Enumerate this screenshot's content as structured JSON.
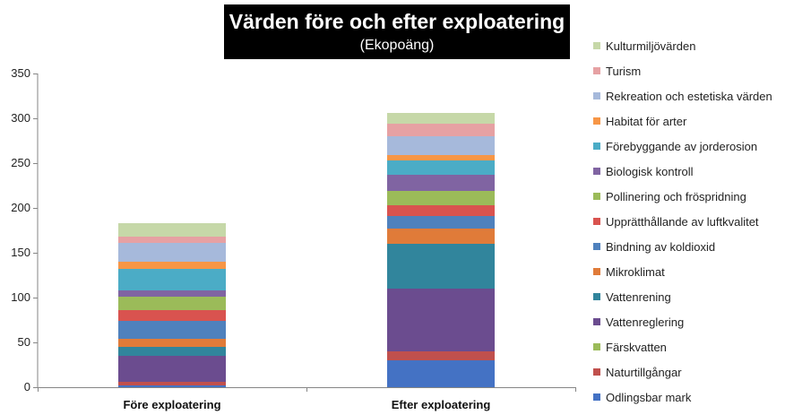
{
  "chart_data": {
    "type": "bar",
    "stacked": true,
    "title": "Värden före och efter exploatering",
    "subtitle": "(Ekopoäng)",
    "xlabel": "",
    "ylabel": "",
    "ylim": [
      0,
      350
    ],
    "yticks": [
      0,
      50,
      100,
      150,
      200,
      250,
      300,
      350
    ],
    "grid": false,
    "legend_position": "right",
    "categories": [
      "Före exploatering",
      "Efter exploatering"
    ],
    "series": [
      {
        "name": "Odlingsbar mark",
        "color": "#4472C4",
        "values": [
          2,
          30
        ]
      },
      {
        "name": "Naturtillgångar",
        "color": "#C0504D",
        "values": [
          4,
          10
        ]
      },
      {
        "name": "Färskvatten",
        "color": "#9BBB59",
        "values": [
          0,
          0
        ]
      },
      {
        "name": "Vattenreglering",
        "color": "#6B4C8F",
        "values": [
          29,
          70
        ]
      },
      {
        "name": "Vattenrening",
        "color": "#31859C",
        "values": [
          10,
          50
        ]
      },
      {
        "name": "Mikroklimat",
        "color": "#E07B39",
        "values": [
          9,
          17
        ]
      },
      {
        "name": "Bindning av koldioxid",
        "color": "#4F81BD",
        "values": [
          20,
          14
        ]
      },
      {
        "name": "Upprätthållande av luftkvalitet",
        "color": "#D9534F",
        "values": [
          12,
          12
        ]
      },
      {
        "name": "Pollinering och fröspridning",
        "color": "#9BBB59",
        "values": [
          15,
          16
        ]
      },
      {
        "name": "Biologisk kontroll",
        "color": "#8064A2",
        "values": [
          7,
          18
        ]
      },
      {
        "name": "Förebyggande av jorderosion",
        "color": "#4BACC6",
        "values": [
          24,
          16
        ]
      },
      {
        "name": "Habitat för arter",
        "color": "#F79646",
        "values": [
          8,
          6
        ]
      },
      {
        "name": "Rekreation och estetiska värden",
        "color": "#A6B9DB",
        "values": [
          21,
          21
        ]
      },
      {
        "name": "Turism",
        "color": "#E6A1A3",
        "values": [
          7,
          14
        ]
      },
      {
        "name": "Kulturmiljövärden",
        "color": "#C6D8A8",
        "values": [
          15,
          12
        ]
      }
    ]
  }
}
